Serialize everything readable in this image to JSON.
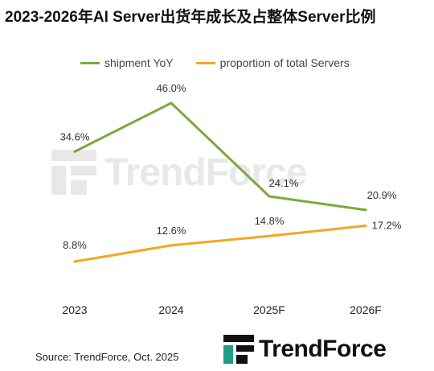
{
  "title": "2023-2026年AI Server出货年成长及占整体Server比例",
  "source": "Source: TrendForce, Oct. 2025",
  "brand": {
    "name": "TrendForce",
    "watermark": "TrendForce"
  },
  "colors": {
    "shipment": "#7aab3a",
    "proportion": "#f5a623"
  },
  "chart_data": {
    "type": "line",
    "categories": [
      "2023",
      "2024",
      "2025F",
      "2026F"
    ],
    "series": [
      {
        "name": "shipment YoY",
        "values": [
          34.6,
          46.0,
          24.1,
          20.9
        ],
        "labels": [
          "34.6%",
          "46.0%",
          "24.1%",
          "20.9%"
        ]
      },
      {
        "name": "proportion of total Servers",
        "values": [
          8.8,
          12.6,
          14.8,
          17.2
        ],
        "labels": [
          "8.8%",
          "12.6%",
          "14.8%",
          "17.2%"
        ]
      }
    ],
    "legend": "top",
    "grid": false
  }
}
